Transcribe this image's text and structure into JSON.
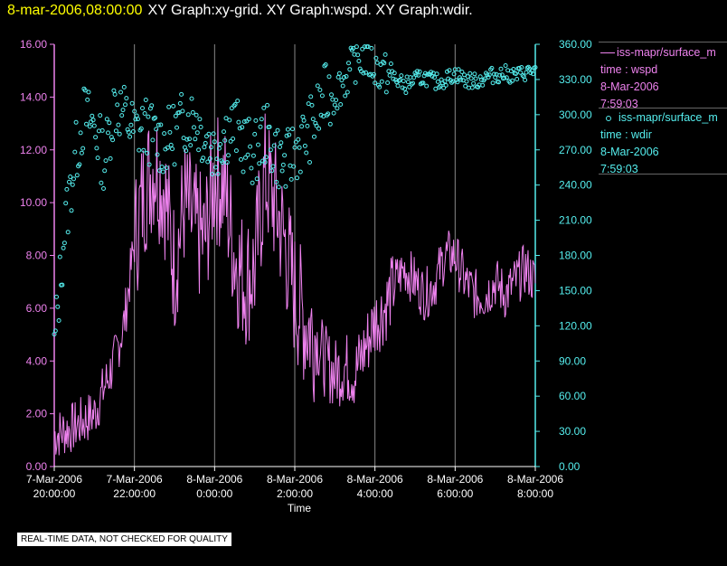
{
  "header": {
    "time": "8-mar-2006,08:00:00",
    "graphs": "XY Graph:xy-grid.  XY Graph:wspd.  XY Graph:wdir."
  },
  "legend": {
    "wspd": {
      "name": "iss-mapr/surface_m",
      "var": "time : wspd",
      "date": "8-Mar-2006",
      "time": "7:59:03"
    },
    "wdir": {
      "name": "iss-mapr/surface_m",
      "var": "time : wdir",
      "date": "8-Mar-2006",
      "time": "7:59:03"
    }
  },
  "footer": {
    "note": "REAL-TIME DATA, NOT CHECKED FOR QUALITY"
  },
  "colors": {
    "wspd": "#ee82ee",
    "wdir": "#55eeee",
    "title_time": "#ffff00",
    "grid": "#888888"
  },
  "chart_data": {
    "type": "line",
    "xlabel": "Time",
    "x_ticks": [
      [
        "7-Mar-2006",
        "20:00:00"
      ],
      [
        "7-Mar-2006",
        "22:00:00"
      ],
      [
        "8-Mar-2006",
        "0:00:00"
      ],
      [
        "8-Mar-2006",
        "2:00:00"
      ],
      [
        "8-Mar-2006",
        "4:00:00"
      ],
      [
        "8-Mar-2006",
        "6:00:00"
      ],
      [
        "8-Mar-2006",
        "8:00:00"
      ]
    ],
    "x_range": [
      "7-Mar-2006 20:00:00",
      "8-Mar-2006 08:00:00"
    ],
    "y_left": {
      "ylim": [
        0,
        16
      ],
      "ticks": [
        "0.00",
        "2.00",
        "4.00",
        "6.00",
        "8.00",
        "10.00",
        "12.00",
        "14.00",
        "16.00"
      ]
    },
    "y_right": {
      "ylim": [
        0,
        360
      ],
      "ticks": [
        "0.00",
        "30.00",
        "60.00",
        "90.00",
        "120.00",
        "150.00",
        "180.00",
        "210.00",
        "240.00",
        "270.00",
        "300.00",
        "330.00",
        "360.00"
      ]
    },
    "grid": "vertical lines at x ticks",
    "series": [
      {
        "name": "iss-mapr/surface_m time : wspd",
        "style": "line",
        "axis": "left",
        "hours": [
          0,
          0.5,
          1,
          1.25,
          1.5,
          1.75,
          2,
          2.25,
          2.5,
          2.75,
          3,
          3.25,
          3.5,
          3.75,
          4,
          4.25,
          4.5,
          4.75,
          5,
          5.25,
          5.5,
          5.75,
          6,
          6.25,
          6.5,
          6.75,
          7,
          7.25,
          7.5,
          7.75,
          8,
          8.25,
          8.5,
          8.75,
          9,
          9.25,
          9.5,
          9.75,
          10,
          10.25,
          10.5,
          10.75,
          11,
          11.25,
          11.5,
          11.75,
          12
        ],
        "values": [
          1.2,
          1.5,
          2.0,
          3.0,
          4.0,
          5.5,
          8.5,
          10.5,
          11.5,
          10.5,
          7.5,
          10.0,
          9.0,
          8.5,
          11.0,
          10.5,
          8.0,
          7.0,
          7.5,
          11.0,
          10.0,
          8.5,
          6.5,
          5.5,
          5.0,
          4.0,
          3.5,
          3.8,
          3.5,
          4.5,
          5.5,
          6.0,
          7.0,
          7.5,
          7.0,
          6.5,
          7.0,
          8.0,
          8.0,
          7.0,
          6.5,
          6.5,
          7.0,
          6.5,
          7.0,
          7.5,
          7.0
        ]
      },
      {
        "name": "iss-mapr/surface_m time : wdir",
        "style": "points",
        "axis": "right",
        "hours": [
          0,
          0.25,
          0.5,
          0.75,
          1,
          1.25,
          1.5,
          1.75,
          2,
          2.25,
          2.5,
          2.75,
          3,
          3.25,
          3.5,
          3.75,
          4,
          4.25,
          4.5,
          4.75,
          5,
          5.25,
          5.5,
          5.75,
          6,
          6.25,
          6.5,
          6.75,
          7,
          7.25,
          7.5,
          7.75,
          8,
          8.25,
          8.5,
          8.75,
          9,
          9.25,
          9.5,
          9.75,
          10,
          10.25,
          10.5,
          10.75,
          11,
          11.25,
          11.5,
          11.75,
          12
        ],
        "values": [
          100,
          200,
          260,
          300,
          290,
          260,
          310,
          300,
          285,
          290,
          280,
          275,
          285,
          295,
          300,
          280,
          270,
          285,
          290,
          275,
          265,
          285,
          270,
          255,
          270,
          280,
          295,
          315,
          320,
          330,
          345,
          350,
          340,
          335,
          330,
          325,
          330,
          332,
          328,
          330,
          335,
          330,
          328,
          332,
          334,
          335,
          333,
          336,
          338
        ]
      }
    ]
  }
}
